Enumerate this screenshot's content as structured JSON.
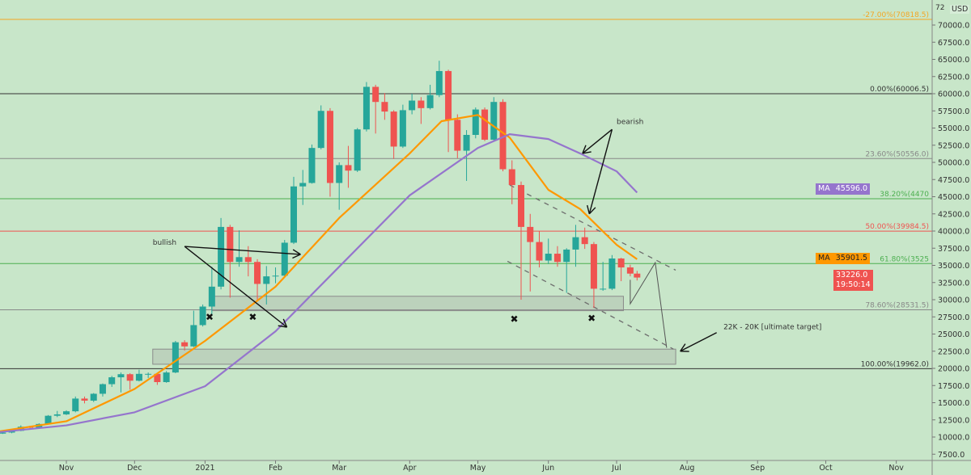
{
  "currency": "USD",
  "top_tick_partial": "72",
  "colors": {
    "background": "#c8e6c9",
    "up": "#26a69a",
    "down": "#ef5350",
    "ma_fast": "#ff9800",
    "ma_slow": "#9575cd",
    "price_badge": "#ef5350"
  },
  "badges": {
    "ma_slow": {
      "tag": "MA",
      "value": "45596.0"
    },
    "ma_fast": {
      "tag": "MA",
      "value": "35901.5"
    },
    "last_price": {
      "value": "33226.0",
      "countdown": "19:50:14"
    }
  },
  "chart_data": {
    "type": "candlestick",
    "title": "",
    "ylim": [
      5000,
      73000
    ],
    "xlim": [
      "2020-10-02",
      "2021-11-28"
    ],
    "y_ticks": [
      "7500.0",
      "10000.0",
      "12500.0",
      "15000.0",
      "17500.0",
      "20000.0",
      "22500.0",
      "25000.0",
      "27500.0",
      "30000.0",
      "32500.0",
      "35000.0",
      "37500.0",
      "40000.0",
      "42500.0",
      "45000.0",
      "47500.0",
      "50000.0",
      "52500.0",
      "55000.0",
      "57500.0",
      "60000.0",
      "62500.0",
      "65000.0",
      "67500.0",
      "70000.0"
    ],
    "x_ticks": [
      [
        "2020-11-01",
        "Nov"
      ],
      [
        "2020-12-01",
        "Dec"
      ],
      [
        "2021-01-01",
        "2021"
      ],
      [
        "2021-02-01",
        "Feb"
      ],
      [
        "2021-03-01",
        "Mar"
      ],
      [
        "2021-04-01",
        "Apr"
      ],
      [
        "2021-05-01",
        "May"
      ],
      [
        "2021-06-01",
        "Jun"
      ],
      [
        "2021-07-01",
        "Jul"
      ],
      [
        "2021-08-01",
        "Aug"
      ],
      [
        "2021-09-01",
        "Sep"
      ],
      [
        "2021-10-01",
        "Oct"
      ],
      [
        "2021-11-01",
        "Nov"
      ]
    ],
    "candles": [
      [
        "2020-10-04",
        10500,
        10750,
        10450,
        10650
      ],
      [
        "2020-10-08",
        10650,
        11000,
        10550,
        10900
      ],
      [
        "2020-10-12",
        10900,
        11700,
        10850,
        11500
      ],
      [
        "2020-10-16",
        11500,
        11650,
        11250,
        11350
      ],
      [
        "2020-10-20",
        11350,
        12000,
        11300,
        11900
      ],
      [
        "2020-10-24",
        11900,
        13200,
        11850,
        13100
      ],
      [
        "2020-10-28",
        13100,
        13800,
        12900,
        13300
      ],
      [
        "2020-11-01",
        13300,
        13900,
        13200,
        13750
      ],
      [
        "2020-11-05",
        13750,
        15900,
        13600,
        15600
      ],
      [
        "2020-11-09",
        15600,
        15900,
        14900,
        15300
      ],
      [
        "2020-11-13",
        15300,
        16400,
        15100,
        16300
      ],
      [
        "2020-11-17",
        16300,
        17800,
        15900,
        17700
      ],
      [
        "2020-11-21",
        17700,
        18900,
        17300,
        18700
      ],
      [
        "2020-11-25",
        18700,
        19400,
        16500,
        19150
      ],
      [
        "2020-11-29",
        19150,
        19300,
        16900,
        18200
      ],
      [
        "2020-12-03",
        18200,
        19800,
        18100,
        19200
      ],
      [
        "2020-12-07",
        19200,
        19400,
        18600,
        19200
      ],
      [
        "2020-12-11",
        19200,
        19300,
        17600,
        18000
      ],
      [
        "2020-12-15",
        18000,
        19600,
        17900,
        19400
      ],
      [
        "2020-12-19",
        19400,
        24000,
        19300,
        23800
      ],
      [
        "2020-12-23",
        23800,
        24100,
        22600,
        23200
      ],
      [
        "2020-12-27",
        23200,
        28400,
        23100,
        26300
      ],
      [
        "2020-12-31",
        26300,
        29300,
        26100,
        29000
      ],
      [
        "2021-01-04",
        29000,
        34800,
        27800,
        31900
      ],
      [
        "2021-01-08",
        31900,
        41900,
        31500,
        40600
      ],
      [
        "2021-01-12",
        40600,
        40900,
        30300,
        35500
      ],
      [
        "2021-01-16",
        35500,
        40100,
        34800,
        36200
      ],
      [
        "2021-01-20",
        36200,
        37800,
        33400,
        35500
      ],
      [
        "2021-01-24",
        35500,
        35900,
        30000,
        32300
      ],
      [
        "2021-01-28",
        32300,
        34900,
        29300,
        33400
      ],
      [
        "2021-02-01",
        33400,
        34700,
        32400,
        33500
      ],
      [
        "2021-02-05",
        33500,
        38700,
        33300,
        38300
      ],
      [
        "2021-02-09",
        38300,
        47900,
        38100,
        46500
      ],
      [
        "2021-02-13",
        46500,
        48900,
        43800,
        47000
      ],
      [
        "2021-02-17",
        47000,
        52600,
        46900,
        52100
      ],
      [
        "2021-02-21",
        52100,
        58300,
        51900,
        57500
      ],
      [
        "2021-02-25",
        57500,
        57900,
        45000,
        47000
      ],
      [
        "2021-03-01",
        47000,
        50000,
        43100,
        49600
      ],
      [
        "2021-03-05",
        49600,
        52400,
        46300,
        48800
      ],
      [
        "2021-03-09",
        48800,
        55000,
        48600,
        54800
      ],
      [
        "2021-03-13",
        54800,
        61700,
        54500,
        61000
      ],
      [
        "2021-03-17",
        61000,
        61300,
        54200,
        58800
      ],
      [
        "2021-03-21",
        58800,
        60100,
        56200,
        57400
      ],
      [
        "2021-03-25",
        57400,
        57600,
        50500,
        52300
      ],
      [
        "2021-03-29",
        52300,
        58400,
        52100,
        57600
      ],
      [
        "2021-04-02",
        57600,
        60000,
        57000,
        59000
      ],
      [
        "2021-04-06",
        59000,
        59500,
        55600,
        57900
      ],
      [
        "2021-04-10",
        57900,
        61300,
        57700,
        59800
      ],
      [
        "2021-04-14",
        59800,
        64800,
        59500,
        63300
      ],
      [
        "2021-04-18",
        63300,
        63500,
        51500,
        56200
      ],
      [
        "2021-04-22",
        56200,
        57000,
        50600,
        51700
      ],
      [
        "2021-04-26",
        51700,
        54700,
        47300,
        54000
      ],
      [
        "2021-04-30",
        54000,
        58000,
        53500,
        57700
      ],
      [
        "2021-05-04",
        57700,
        58000,
        53100,
        53300
      ],
      [
        "2021-05-08",
        53300,
        59500,
        53000,
        58800
      ],
      [
        "2021-05-12",
        58800,
        59200,
        48700,
        49000
      ],
      [
        "2021-05-16",
        49000,
        50300,
        43900,
        46700
      ],
      [
        "2021-05-20",
        46700,
        47200,
        30000,
        40600
      ],
      [
        "2021-05-24",
        40600,
        42500,
        31200,
        38400
      ],
      [
        "2021-05-28",
        38400,
        40000,
        34700,
        35700
      ],
      [
        "2021-06-01",
        35700,
        38900,
        35200,
        36700
      ],
      [
        "2021-06-05",
        36700,
        37800,
        34800,
        35500
      ],
      [
        "2021-06-09",
        35500,
        37500,
        31000,
        37300
      ],
      [
        "2021-06-13",
        37300,
        40900,
        34800,
        39100
      ],
      [
        "2021-06-17",
        39100,
        40500,
        37400,
        38100
      ],
      [
        "2021-06-21",
        38100,
        38400,
        28800,
        31600
      ],
      [
        "2021-06-25",
        31600,
        35500,
        31300,
        31600
      ],
      [
        "2021-06-29",
        31600,
        36500,
        31400,
        36000
      ],
      [
        "2021-07-03",
        36000,
        36100,
        32700,
        34700
      ],
      [
        "2021-07-07",
        34700,
        35100,
        33400,
        33800
      ],
      [
        "2021-07-10",
        33800,
        34200,
        32800,
        33226
      ]
    ],
    "moving_averages": [
      {
        "name": "MA",
        "color": "#ff9800",
        "points": [
          [
            "2020-10-02",
            10800
          ],
          [
            "2020-11-01",
            12300
          ],
          [
            "2020-12-01",
            17000
          ],
          [
            "2021-01-01",
            24000
          ],
          [
            "2021-02-01",
            31900
          ],
          [
            "2021-03-01",
            41900
          ],
          [
            "2021-04-01",
            51300
          ],
          [
            "2021-04-15",
            56000
          ],
          [
            "2021-05-01",
            56900
          ],
          [
            "2021-05-15",
            53600
          ],
          [
            "2021-06-01",
            46000
          ],
          [
            "2021-06-15",
            43200
          ],
          [
            "2021-07-01",
            38000
          ],
          [
            "2021-07-10",
            35900
          ]
        ]
      },
      {
        "name": "MA",
        "color": "#9575cd",
        "points": [
          [
            "2020-10-02",
            10700
          ],
          [
            "2020-11-01",
            11700
          ],
          [
            "2020-12-01",
            13600
          ],
          [
            "2021-01-01",
            17400
          ],
          [
            "2021-02-01",
            25400
          ],
          [
            "2021-03-01",
            34800
          ],
          [
            "2021-04-01",
            45200
          ],
          [
            "2021-05-01",
            52100
          ],
          [
            "2021-05-15",
            54100
          ],
          [
            "2021-06-01",
            53400
          ],
          [
            "2021-06-15",
            51300
          ],
          [
            "2021-07-01",
            48700
          ],
          [
            "2021-07-10",
            45600
          ]
        ]
      }
    ],
    "fib_levels": [
      {
        "label": "-27.00%(70818.5)",
        "price": 70818.5,
        "color": "#f5a623"
      },
      {
        "label": "0.00%(60006.5)",
        "price": 60006.5,
        "color": "#333333"
      },
      {
        "label": "23.60%(50556.0)",
        "price": 50556.0,
        "color": "#888888"
      },
      {
        "label": "38.20%(4470",
        "price": 44707,
        "color": "#4caf50"
      },
      {
        "label": "50.00%(39984.5)",
        "price": 39984.5,
        "color": "#ef5350"
      },
      {
        "label": "61.80%(3525",
        "price": 35259,
        "color": "#4caf50"
      },
      {
        "label": "78.60%(28531.5)",
        "price": 28531.5,
        "color": "#888888"
      },
      {
        "label": "100.00%(19962.0)",
        "price": 19962.0,
        "color": "#333333"
      }
    ],
    "zones": [
      {
        "from": "2021-01-04",
        "to": "2021-07-04",
        "high": 30500,
        "low": 28400
      },
      {
        "from": "2020-12-09",
        "to": "2021-07-27",
        "high": 22800,
        "low": 20600
      }
    ],
    "channel": [
      [
        [
          "2021-05-15",
          46700
        ],
        [
          "2021-07-27",
          34300
        ]
      ],
      [
        [
          "2021-05-14",
          35600
        ],
        [
          "2021-07-26",
          22800
        ]
      ]
    ],
    "projection": [
      [
        "2021-07-07",
        32900
      ],
      [
        "2021-07-07",
        29400
      ],
      [
        "2021-07-18",
        35400
      ],
      [
        "2021-07-23",
        23000
      ]
    ],
    "arrows": [
      [
        [
          "2020-12-23",
          37760
        ],
        [
          "2021-02-12",
          36600
        ]
      ],
      [
        [
          "2020-12-23",
          37760
        ],
        [
          "2021-02-06",
          26000
        ]
      ],
      [
        [
          "2021-06-29",
          54800
        ],
        [
          "2021-06-16",
          51300
        ]
      ],
      [
        [
          "2021-06-29",
          54800
        ],
        [
          "2021-06-19",
          42500
        ]
      ],
      [
        [
          "2021-08-14",
          25200
        ],
        [
          "2021-07-29",
          22500
        ]
      ]
    ],
    "markers": [
      [
        "2021-01-03",
        27500
      ],
      [
        "2021-01-22",
        27500
      ],
      [
        "2021-05-17",
        27200
      ],
      [
        "2021-06-20",
        27300
      ]
    ],
    "annotations": [
      {
        "text": "bullish",
        "date": "2020-12-09",
        "price": 38000
      },
      {
        "text": "bearish",
        "date": "2021-07-01",
        "price": 55600
      },
      {
        "text": "22K - 20K  [ultimate target]",
        "date": "2021-08-17",
        "price": 25700
      }
    ]
  }
}
